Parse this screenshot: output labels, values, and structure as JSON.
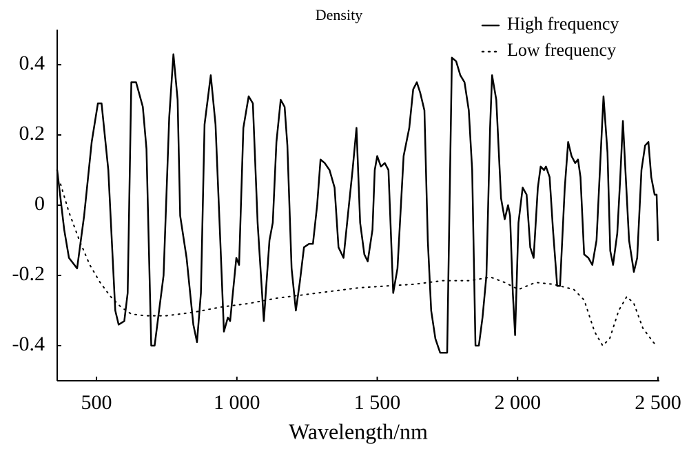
{
  "chart_data": {
    "type": "line",
    "title": "Density",
    "x_label": "Wavelength/nm",
    "xlim": [
      360,
      2500
    ],
    "ylim": [
      -0.5,
      0.5
    ],
    "xticks": [
      500,
      {
        "value": 1000,
        "label": "1 000"
      },
      {
        "value": 1500,
        "label": "1 500"
      },
      {
        "value": 2000,
        "label": "2 000"
      },
      {
        "value": 2500,
        "label": "2 500"
      }
    ],
    "yticks": [
      0.4,
      0.2,
      0,
      -0.2,
      -0.4
    ],
    "legend": "upper right",
    "grid": false,
    "series": [
      {
        "name": "High frequency",
        "color": "#000000",
        "style": "solid",
        "x": [
          360,
          385,
          402,
          431,
          456,
          483,
          505,
          518,
          542,
          567,
          579,
          599,
          611,
          624,
          641,
          665,
          678,
          695,
          707,
          739,
          759,
          774,
          789,
          798,
          821,
          845,
          858,
          872,
          885,
          907,
          924,
          941,
          954,
          968,
          976,
          998,
          1008,
          1023,
          1042,
          1057,
          1074,
          1096,
          1116,
          1128,
          1141,
          1156,
          1170,
          1180,
          1195,
          1210,
          1224,
          1239,
          1257,
          1271,
          1286,
          1298,
          1313,
          1330,
          1348,
          1362,
          1380,
          1399,
          1412,
          1426,
          1439,
          1454,
          1466,
          1483,
          1491,
          1500,
          1513,
          1527,
          1540,
          1557,
          1572,
          1594,
          1614,
          1628,
          1641,
          1653,
          1668,
          1680,
          1692,
          1707,
          1724,
          1749,
          1766,
          1781,
          1796,
          1811,
          1826,
          1838,
          1850,
          1862,
          1875,
          1889,
          1902,
          1909,
          1924,
          1941,
          1954,
          1966,
          1973,
          1983,
          1991,
          2003,
          2018,
          2032,
          2045,
          2057,
          2072,
          2082,
          2094,
          2101,
          2114,
          2126,
          2141,
          2151,
          2168,
          2180,
          2192,
          2205,
          2215,
          2224,
          2237,
          2252,
          2266,
          2281,
          2293,
          2306,
          2320,
          2330,
          2340,
          2355,
          2365,
          2375,
          2384,
          2397,
          2414,
          2426,
          2441,
          2454,
          2466,
          2476,
          2488,
          2495,
          2500
        ],
        "values": [
          0.1,
          -0.07,
          -0.15,
          -0.18,
          -0.03,
          0.18,
          0.29,
          0.29,
          0.1,
          -0.3,
          -0.34,
          -0.33,
          -0.25,
          0.35,
          0.35,
          0.28,
          0.16,
          -0.4,
          -0.4,
          -0.2,
          0.25,
          0.43,
          0.3,
          -0.03,
          -0.15,
          -0.34,
          -0.39,
          -0.25,
          0.23,
          0.37,
          0.23,
          -0.1,
          -0.36,
          -0.32,
          -0.33,
          -0.15,
          -0.17,
          0.22,
          0.31,
          0.29,
          -0.05,
          -0.33,
          -0.1,
          -0.05,
          0.18,
          0.3,
          0.28,
          0.17,
          -0.18,
          -0.3,
          -0.22,
          -0.12,
          -0.11,
          -0.11,
          0.0,
          0.13,
          0.12,
          0.1,
          0.05,
          -0.12,
          -0.15,
          0.0,
          0.1,
          0.22,
          -0.05,
          -0.14,
          -0.16,
          -0.07,
          0.1,
          0.14,
          0.11,
          0.12,
          0.1,
          -0.25,
          -0.18,
          0.14,
          0.22,
          0.33,
          0.35,
          0.32,
          0.27,
          -0.1,
          -0.3,
          -0.38,
          -0.42,
          -0.42,
          0.42,
          0.41,
          0.37,
          0.35,
          0.27,
          0.1,
          -0.4,
          -0.4,
          -0.32,
          -0.2,
          0.22,
          0.37,
          0.3,
          0.02,
          -0.04,
          0.0,
          -0.03,
          -0.25,
          -0.37,
          -0.05,
          0.05,
          0.03,
          -0.12,
          -0.15,
          0.05,
          0.11,
          0.1,
          0.11,
          0.08,
          -0.07,
          -0.23,
          -0.23,
          0.05,
          0.18,
          0.14,
          0.12,
          0.13,
          0.08,
          -0.14,
          -0.15,
          -0.17,
          -0.1,
          0.1,
          0.31,
          0.15,
          -0.13,
          -0.17,
          -0.08,
          0.07,
          0.24,
          0.1,
          -0.1,
          -0.19,
          -0.15,
          0.1,
          0.17,
          0.18,
          0.08,
          0.03,
          0.03,
          -0.1
        ]
      },
      {
        "name": "Low frequency",
        "color": "#000000",
        "style": "dotted",
        "x": [
          372,
          402,
          439,
          476,
          513,
          550,
          587,
          624,
          673,
          747,
          845,
          944,
          1042,
          1141,
          1239,
          1338,
          1436,
          1535,
          1633,
          1732,
          1830,
          1904,
          1954,
          2003,
          2064,
          2126,
          2200,
          2237,
          2274,
          2303,
          2328,
          2360,
          2389,
          2414,
          2446,
          2483,
          2495
        ],
        "values": [
          0.06,
          -0.02,
          -0.1,
          -0.17,
          -0.22,
          -0.26,
          -0.29,
          -0.31,
          -0.315,
          -0.315,
          -0.305,
          -0.29,
          -0.28,
          -0.265,
          -0.255,
          -0.245,
          -0.235,
          -0.23,
          -0.225,
          -0.215,
          -0.215,
          -0.205,
          -0.22,
          -0.24,
          -0.22,
          -0.225,
          -0.24,
          -0.27,
          -0.36,
          -0.4,
          -0.38,
          -0.3,
          -0.26,
          -0.28,
          -0.35,
          -0.39,
          -0.4
        ]
      }
    ]
  }
}
